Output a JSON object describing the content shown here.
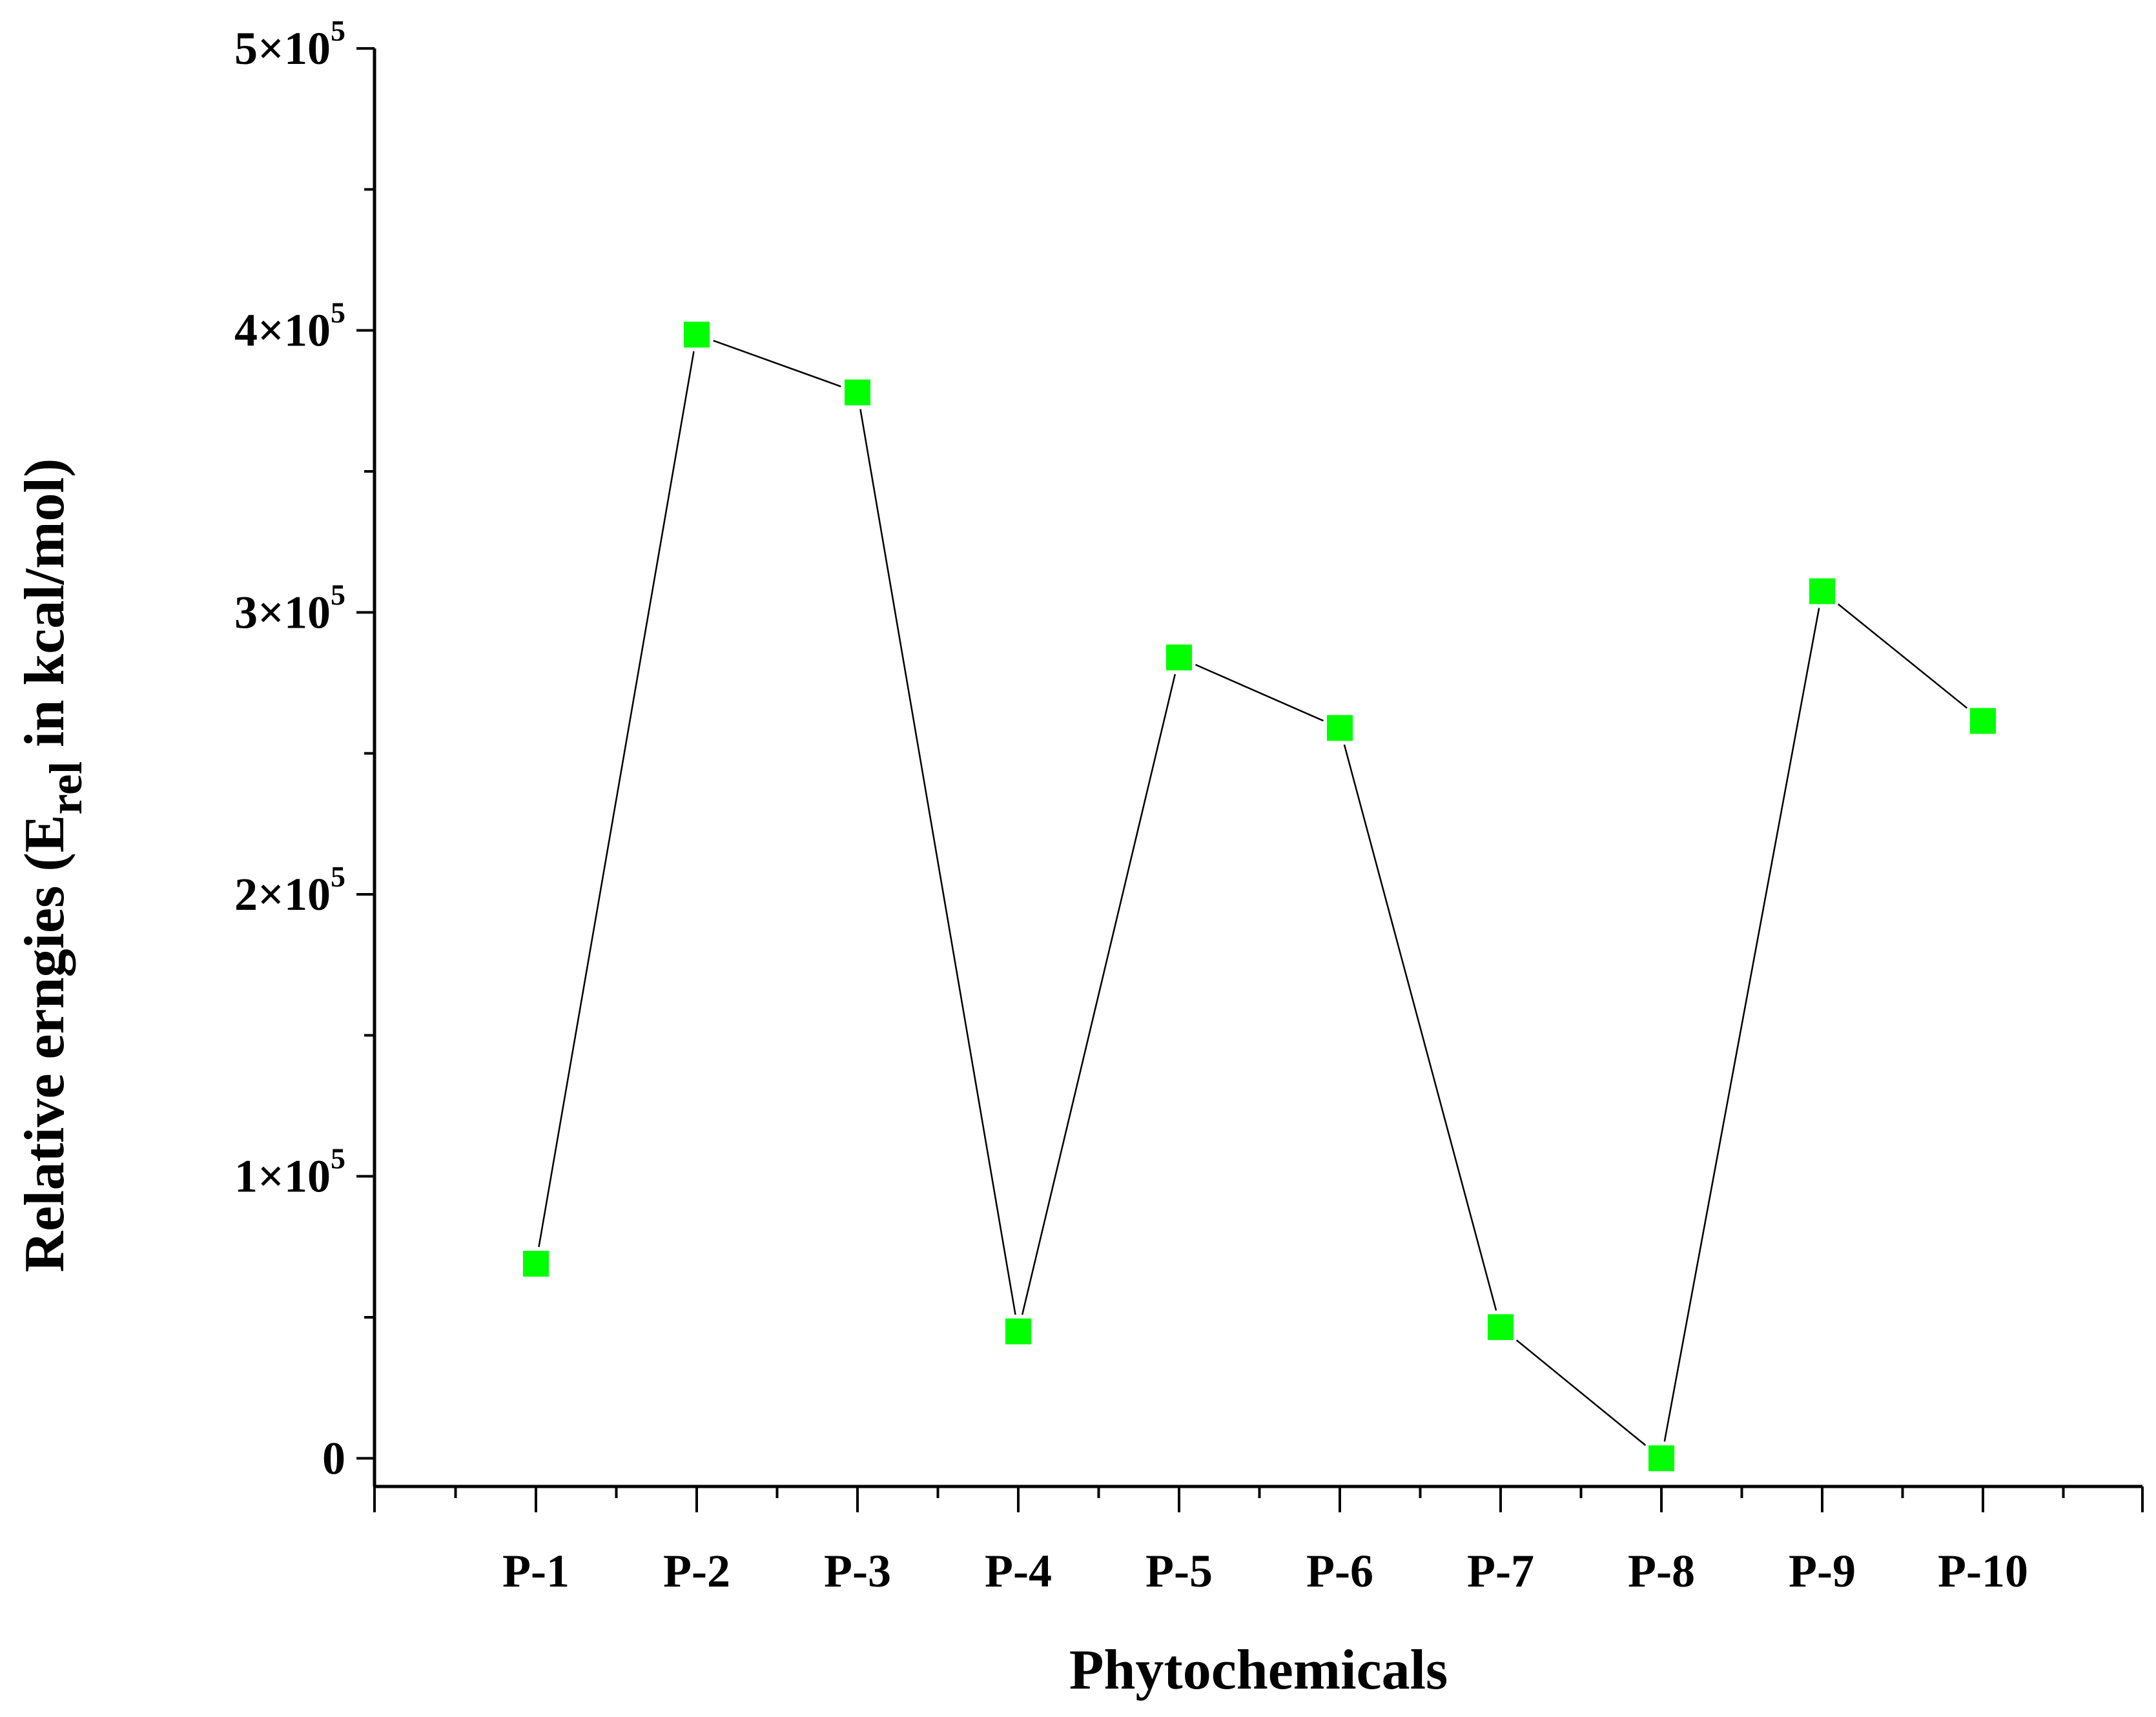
{
  "chart_data": {
    "type": "line",
    "categories": [
      "P-1",
      "P-2",
      "P-3",
      "P-4",
      "P-5",
      "P-6",
      "P-7",
      "P-8",
      "P-9",
      "P-10"
    ],
    "series": [
      {
        "values": [
          69000,
          398500,
          378000,
          45000,
          284000,
          259000,
          46500,
          0,
          307500,
          261500
        ],
        "color": "#00ff00",
        "marker": "square",
        "line_color": "#000000"
      }
    ],
    "xlabel": "Phytochemicals",
    "ylabel_main": "Relative erngies (E",
    "ylabel_sub": "rel",
    "ylabel_tail": " in kcal/mol)",
    "ylim": [
      -10000,
      500000
    ],
    "yticks": [
      {
        "value": 0,
        "mantissa": "0",
        "exp": ""
      },
      {
        "value": 100000,
        "mantissa": "1×10",
        "exp": "5"
      },
      {
        "value": 200000,
        "mantissa": "2×10",
        "exp": "5"
      },
      {
        "value": 300000,
        "mantissa": "3×10",
        "exp": "5"
      },
      {
        "value": 400000,
        "mantissa": "4×10",
        "exp": "5"
      },
      {
        "value": 500000,
        "mantissa": "5×10",
        "exp": "5"
      }
    ],
    "grid": false,
    "legend": "none"
  }
}
